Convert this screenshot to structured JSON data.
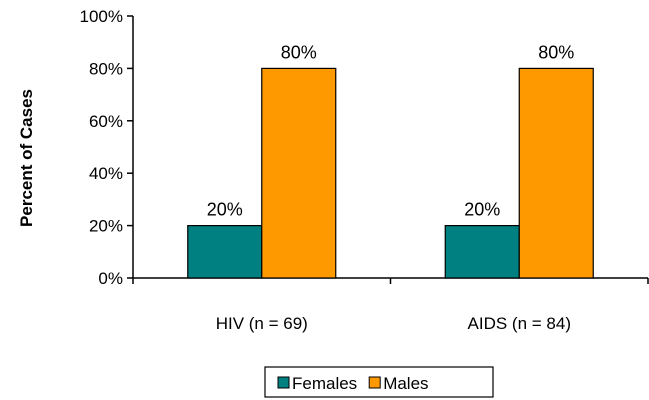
{
  "chart_data": {
    "type": "bar",
    "categories": [
      "HIV (n = 69)",
      "AIDS (n = 84)"
    ],
    "series": [
      {
        "name": "Females",
        "color": "#008080",
        "values": [
          20,
          20
        ],
        "labels": [
          "20%",
          "20%"
        ]
      },
      {
        "name": "Males",
        "color": "#FF9900",
        "values": [
          80,
          80
        ],
        "labels": [
          "80%",
          "80%"
        ]
      }
    ],
    "ylabel": "Percent of Cases",
    "ylim": [
      0,
      100
    ],
    "yticks": [
      0,
      20,
      40,
      60,
      80,
      100
    ],
    "ytick_labels": [
      "0%",
      "20%",
      "40%",
      "60%",
      "80%",
      "100%"
    ],
    "legend_position": "bottom",
    "grid": false
  }
}
